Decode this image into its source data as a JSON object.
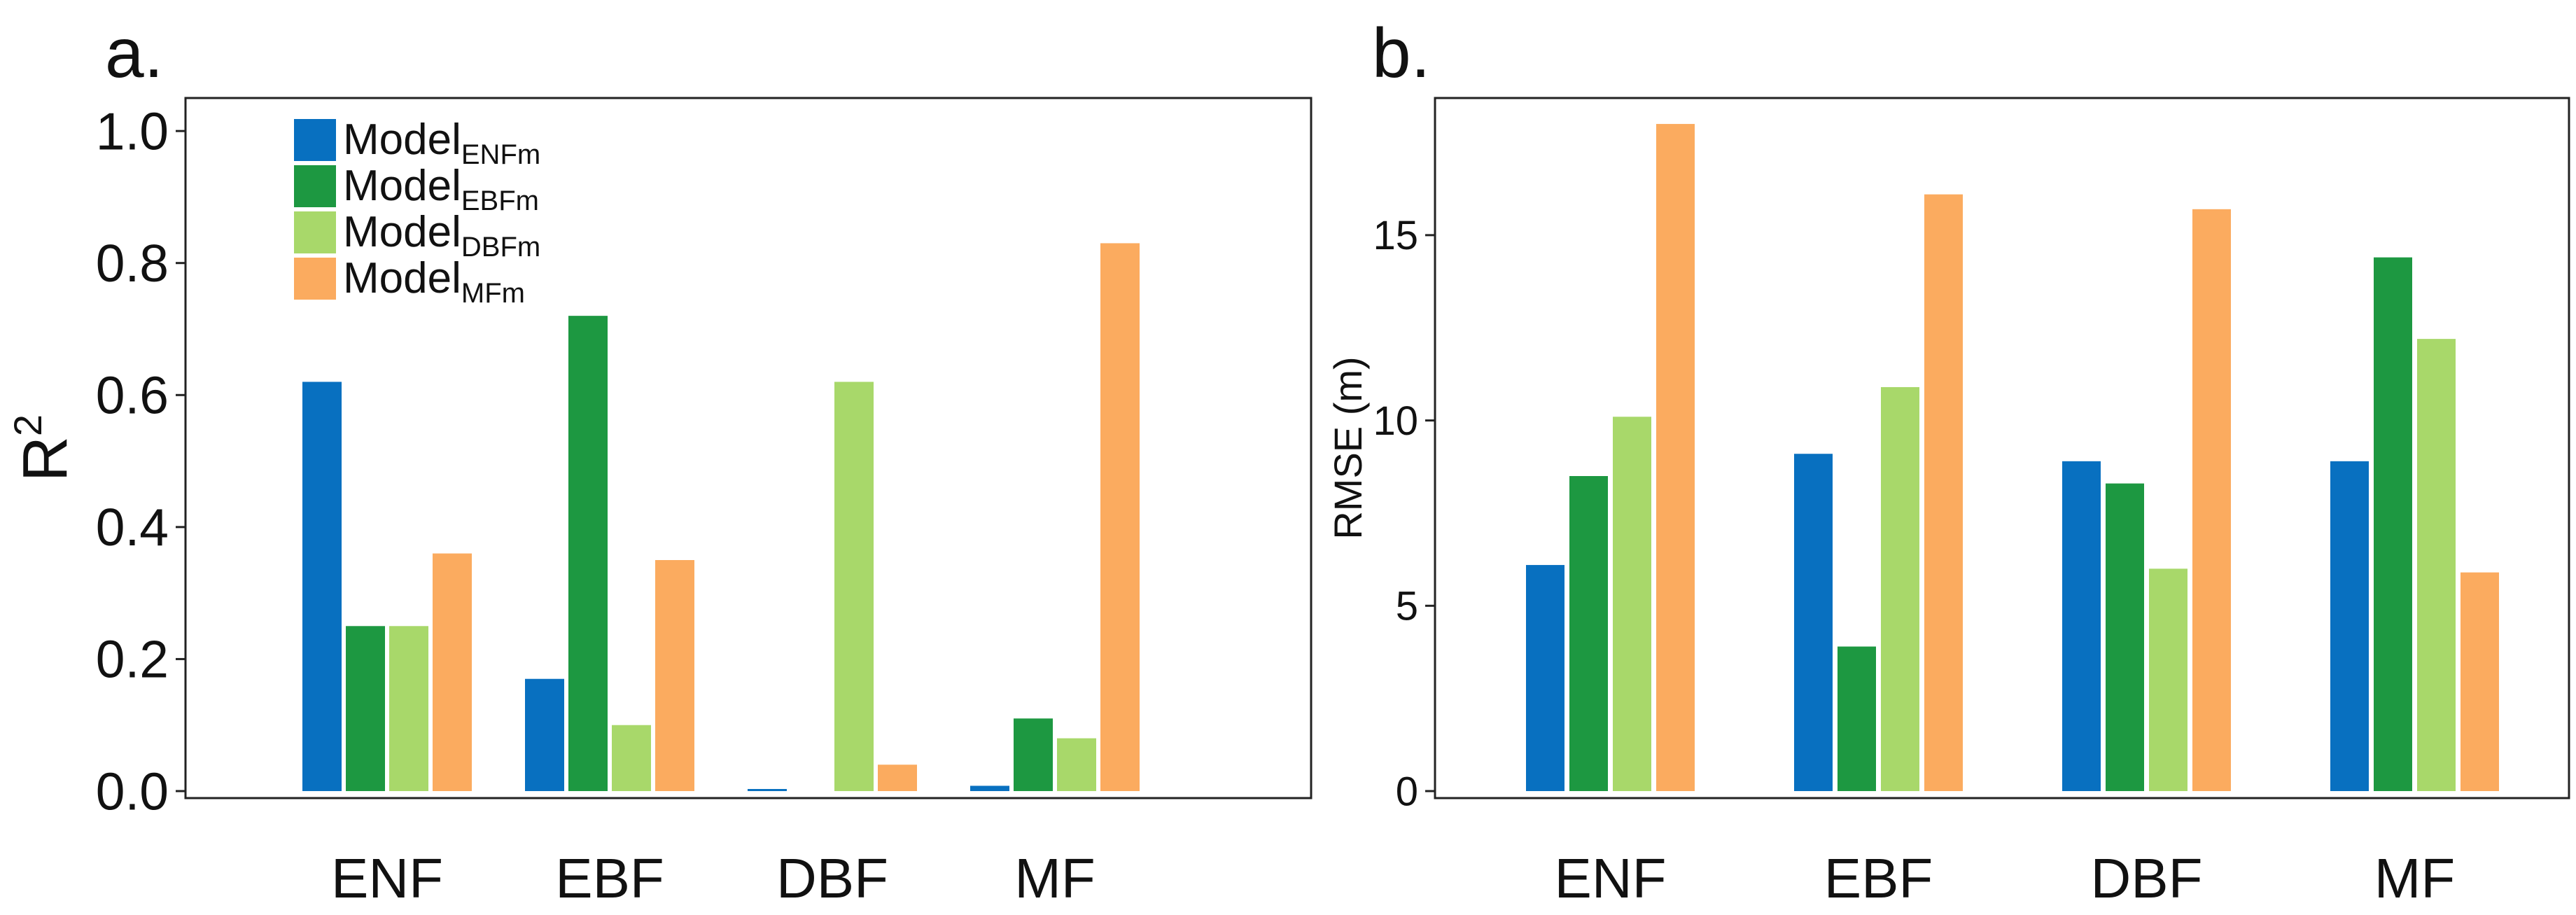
{
  "chart_data": [
    {
      "type": "bar",
      "panel_label": "a.",
      "categories": [
        "ENF",
        "EBF",
        "DBF",
        "MF"
      ],
      "series": [
        {
          "name": "Model",
          "sub": "ENFm",
          "color": "#0870c0",
          "values": [
            0.62,
            0.17,
            0.003,
            0.008
          ]
        },
        {
          "name": "Model",
          "sub": "EBFm",
          "color": "#1d9841",
          "values": [
            0.25,
            0.72,
            0.0,
            0.11
          ]
        },
        {
          "name": "Model",
          "sub": "DBFm",
          "color": "#a8d86a",
          "values": [
            0.25,
            0.1,
            0.62,
            0.08
          ]
        },
        {
          "name": "Model",
          "sub": "MFm",
          "color": "#fbab5f",
          "values": [
            0.36,
            0.35,
            0.04,
            0.83
          ]
        }
      ],
      "ylabel": "R",
      "ylabel_sup": "2",
      "ylim": [
        0,
        1.05
      ],
      "yticks": [
        "0.0",
        "0.2",
        "0.4",
        "0.6",
        "0.8",
        "1.0"
      ],
      "grid": false,
      "legend_position": "top-left"
    },
    {
      "type": "bar",
      "panel_label": "b.",
      "categories": [
        "ENF",
        "EBF",
        "DBF",
        "MF"
      ],
      "series": [
        {
          "name": "Model",
          "sub": "ENFm",
          "color": "#0870c0",
          "values": [
            6.1,
            9.1,
            8.9,
            8.9
          ]
        },
        {
          "name": "Model",
          "sub": "EBFm",
          "color": "#1d9841",
          "values": [
            8.5,
            3.9,
            8.3,
            14.4
          ]
        },
        {
          "name": "Model",
          "sub": "DBFm",
          "color": "#a8d86a",
          "values": [
            10.1,
            10.9,
            6.0,
            12.2
          ]
        },
        {
          "name": "Model",
          "sub": "MFm",
          "color": "#fbab5f",
          "values": [
            18.0,
            16.1,
            15.7,
            5.9
          ]
        }
      ],
      "ylabel": "RMSE (m)",
      "ylim": [
        0,
        18.7
      ],
      "yticks": [
        "0",
        "5",
        "10",
        "15"
      ],
      "grid": false
    }
  ]
}
